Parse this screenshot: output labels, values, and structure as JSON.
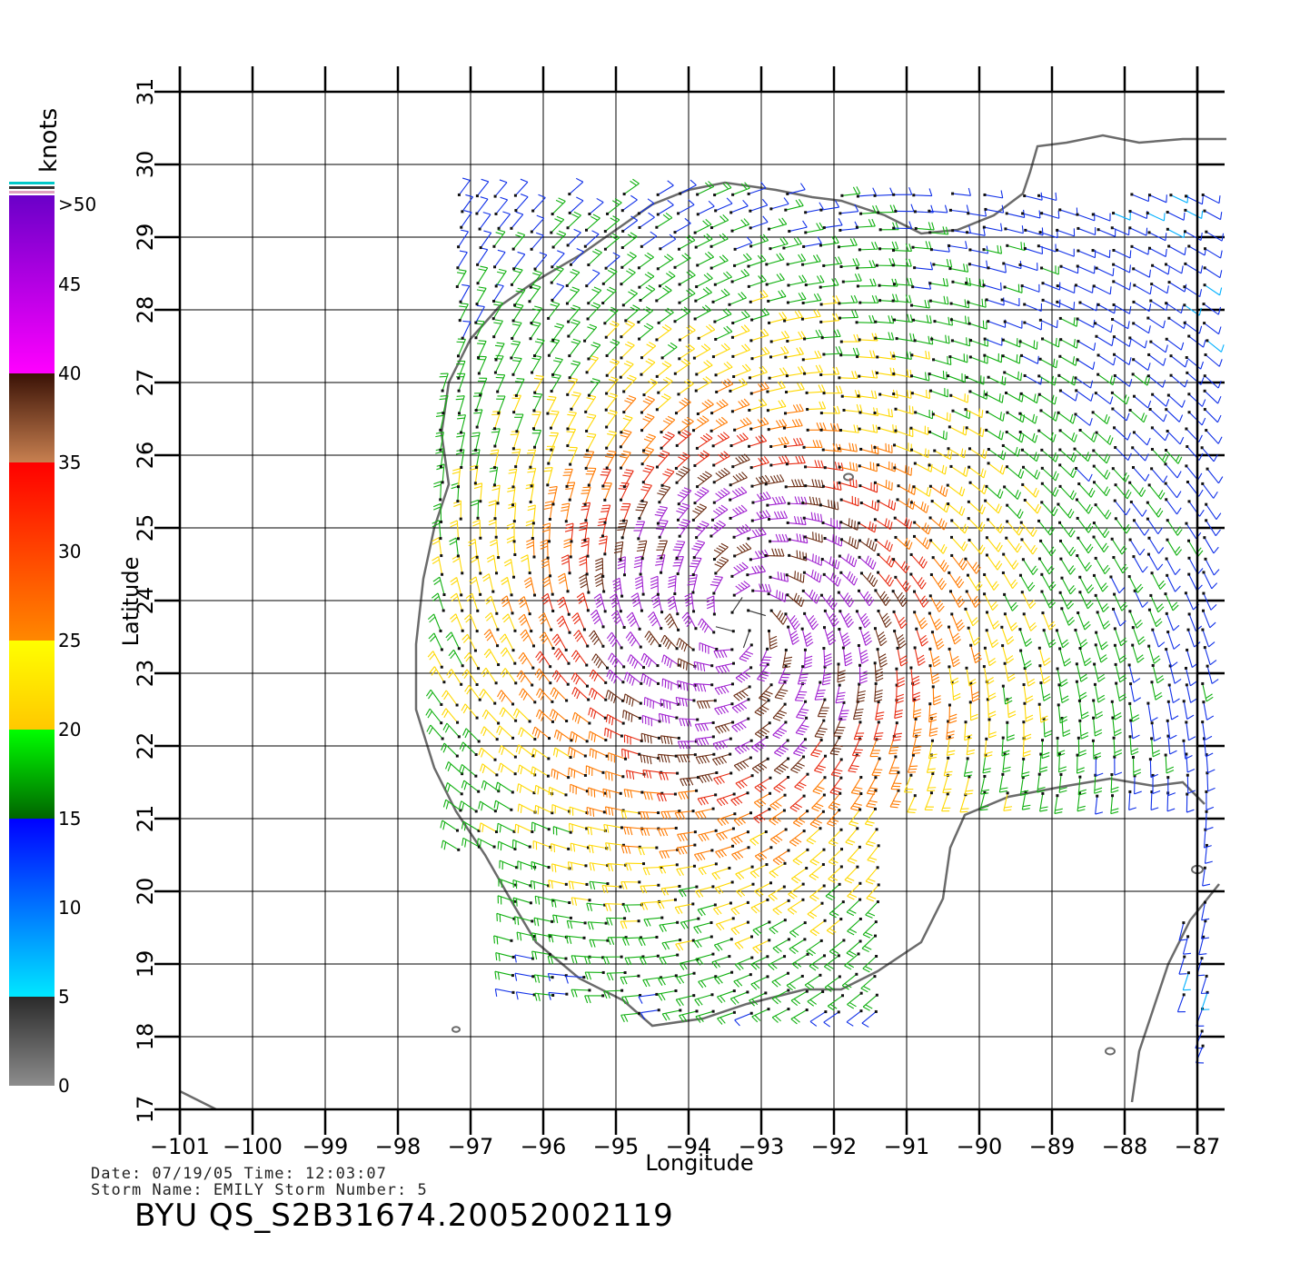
{
  "map": {
    "x_axis_label": "Longitude",
    "y_axis_label": "Latitude",
    "lon_range": [
      -101,
      -86.6
    ],
    "lat_range": [
      17,
      31
    ],
    "x_ticks": [
      -101,
      -100,
      -99,
      -98,
      -97,
      -96,
      -95,
      -94,
      -93,
      -92,
      -91,
      -90,
      -89,
      -88,
      -87
    ],
    "y_ticks": [
      17,
      18,
      19,
      20,
      21,
      22,
      23,
      24,
      25,
      26,
      27,
      28,
      29,
      30,
      31
    ],
    "grid": true,
    "storm_center": [
      -93.3,
      23.7
    ],
    "coastline_color": "#6b6b6b"
  },
  "legend": {
    "title": "knots",
    "labels": [
      ">50",
      "45",
      "40",
      "35",
      "30",
      "25",
      "20",
      "15",
      "10",
      "5",
      "0"
    ],
    "bands": [
      {
        "from": 0,
        "to": 5,
        "top": "#2a2a2a",
        "bottom": "#8c8c8c"
      },
      {
        "from": 5,
        "to": 15,
        "top": "#0000ff",
        "bottom": "#00e8ff"
      },
      {
        "from": 15,
        "to": 20,
        "top": "#00ff00",
        "bottom": "#006400"
      },
      {
        "from": 20,
        "to": 25,
        "top": "#ffff00",
        "bottom": "#ffc800"
      },
      {
        "from": 25,
        "to": 35,
        "top": "#ff0000",
        "bottom": "#ff8800"
      },
      {
        "from": 35,
        "to": 40,
        "top": "#3a1206",
        "bottom": "#c88050"
      },
      {
        "from": 40,
        "to": 50,
        "top": "#6a00c8",
        "bottom": "#ff00ff"
      }
    ]
  },
  "footer": {
    "line1": "Date: 07/19/05   Time: 12:03:07",
    "line2": "Storm Name: EMILY   Storm Number: 5",
    "product": "BYU QS_S2B31674.20052002119"
  }
}
